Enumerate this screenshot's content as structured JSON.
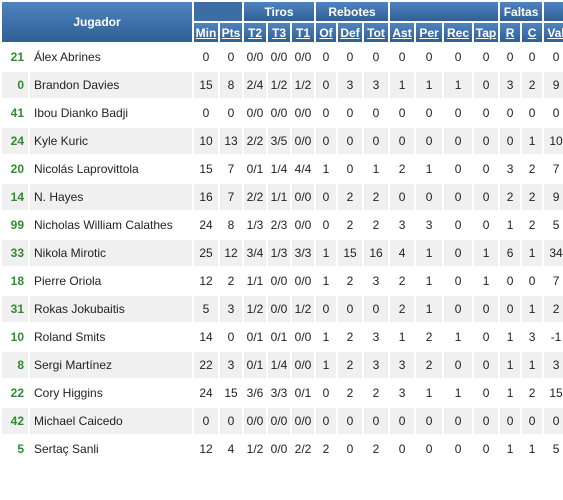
{
  "headers": {
    "jugador": "Jugador",
    "groups": {
      "tiros": "Tiros",
      "rebotes": "Rebotes",
      "faltas": "Faltas"
    },
    "cols": [
      "Min",
      "Pts",
      "T2",
      "T3",
      "T1",
      "Of",
      "Def",
      "Tot",
      "Ast",
      "Per",
      "Rec",
      "Tap",
      "R",
      "C",
      "Val"
    ]
  },
  "players": [
    {
      "num": "21",
      "name": "Álex Abrines",
      "stats": [
        "0",
        "0",
        "0/0",
        "0/0",
        "0/0",
        "0",
        "0",
        "0",
        "0",
        "0",
        "0",
        "0",
        "0",
        "0",
        "0"
      ]
    },
    {
      "num": "0",
      "name": "Brandon Davies",
      "stats": [
        "15",
        "8",
        "2/4",
        "1/2",
        "1/2",
        "0",
        "3",
        "3",
        "1",
        "1",
        "1",
        "0",
        "3",
        "2",
        "9"
      ]
    },
    {
      "num": "41",
      "name": "Ibou Dianko Badji",
      "stats": [
        "0",
        "0",
        "0/0",
        "0/0",
        "0/0",
        "0",
        "0",
        "0",
        "0",
        "0",
        "0",
        "0",
        "0",
        "0",
        "0"
      ]
    },
    {
      "num": "24",
      "name": "Kyle Kuric",
      "stats": [
        "10",
        "13",
        "2/2",
        "3/5",
        "0/0",
        "0",
        "0",
        "0",
        "0",
        "0",
        "0",
        "0",
        "0",
        "1",
        "10"
      ]
    },
    {
      "num": "20",
      "name": "Nicolás Laprovittola",
      "stats": [
        "15",
        "7",
        "0/1",
        "1/4",
        "4/4",
        "1",
        "0",
        "1",
        "2",
        "1",
        "0",
        "0",
        "3",
        "2",
        "7"
      ]
    },
    {
      "num": "14",
      "name": "N. Hayes",
      "stats": [
        "16",
        "7",
        "2/2",
        "1/1",
        "0/0",
        "0",
        "2",
        "2",
        "0",
        "0",
        "0",
        "0",
        "2",
        "2",
        "9"
      ]
    },
    {
      "num": "99",
      "name": "Nicholas William Calathes",
      "stats": [
        "24",
        "8",
        "1/3",
        "2/3",
        "0/0",
        "0",
        "2",
        "2",
        "3",
        "3",
        "0",
        "0",
        "1",
        "2",
        "5"
      ]
    },
    {
      "num": "33",
      "name": "Nikola Mirotic",
      "stats": [
        "25",
        "12",
        "3/4",
        "1/3",
        "3/3",
        "1",
        "15",
        "16",
        "4",
        "1",
        "0",
        "1",
        "6",
        "1",
        "34"
      ]
    },
    {
      "num": "18",
      "name": "Pierre Oriola",
      "stats": [
        "12",
        "2",
        "1/1",
        "0/0",
        "0/0",
        "1",
        "2",
        "3",
        "2",
        "1",
        "0",
        "1",
        "0",
        "0",
        "7"
      ]
    },
    {
      "num": "31",
      "name": "Rokas Jokubaitis",
      "stats": [
        "5",
        "3",
        "1/2",
        "0/0",
        "1/2",
        "0",
        "0",
        "0",
        "2",
        "1",
        "0",
        "0",
        "0",
        "1",
        "2"
      ]
    },
    {
      "num": "10",
      "name": "Roland Smits",
      "stats": [
        "14",
        "0",
        "0/1",
        "0/1",
        "0/0",
        "1",
        "2",
        "3",
        "1",
        "2",
        "1",
        "0",
        "1",
        "3",
        "-1"
      ]
    },
    {
      "num": "8",
      "name": "Sergi Martínez",
      "stats": [
        "22",
        "3",
        "0/1",
        "1/4",
        "0/0",
        "1",
        "2",
        "3",
        "3",
        "2",
        "0",
        "0",
        "1",
        "1",
        "3"
      ]
    },
    {
      "num": "22",
      "name": "Cory Higgins",
      "stats": [
        "24",
        "15",
        "3/6",
        "3/3",
        "0/1",
        "0",
        "2",
        "2",
        "3",
        "1",
        "1",
        "0",
        "1",
        "2",
        "15"
      ]
    },
    {
      "num": "42",
      "name": "Michael Caicedo",
      "stats": [
        "0",
        "0",
        "0/0",
        "0/0",
        "0/0",
        "0",
        "0",
        "0",
        "0",
        "0",
        "0",
        "0",
        "0",
        "0",
        "0"
      ]
    },
    {
      "num": "5",
      "name": "Sertaç Sanli",
      "stats": [
        "12",
        "4",
        "1/2",
        "0/0",
        "2/2",
        "2",
        "0",
        "2",
        "0",
        "0",
        "0",
        "0",
        "1",
        "1",
        "5"
      ]
    }
  ]
}
